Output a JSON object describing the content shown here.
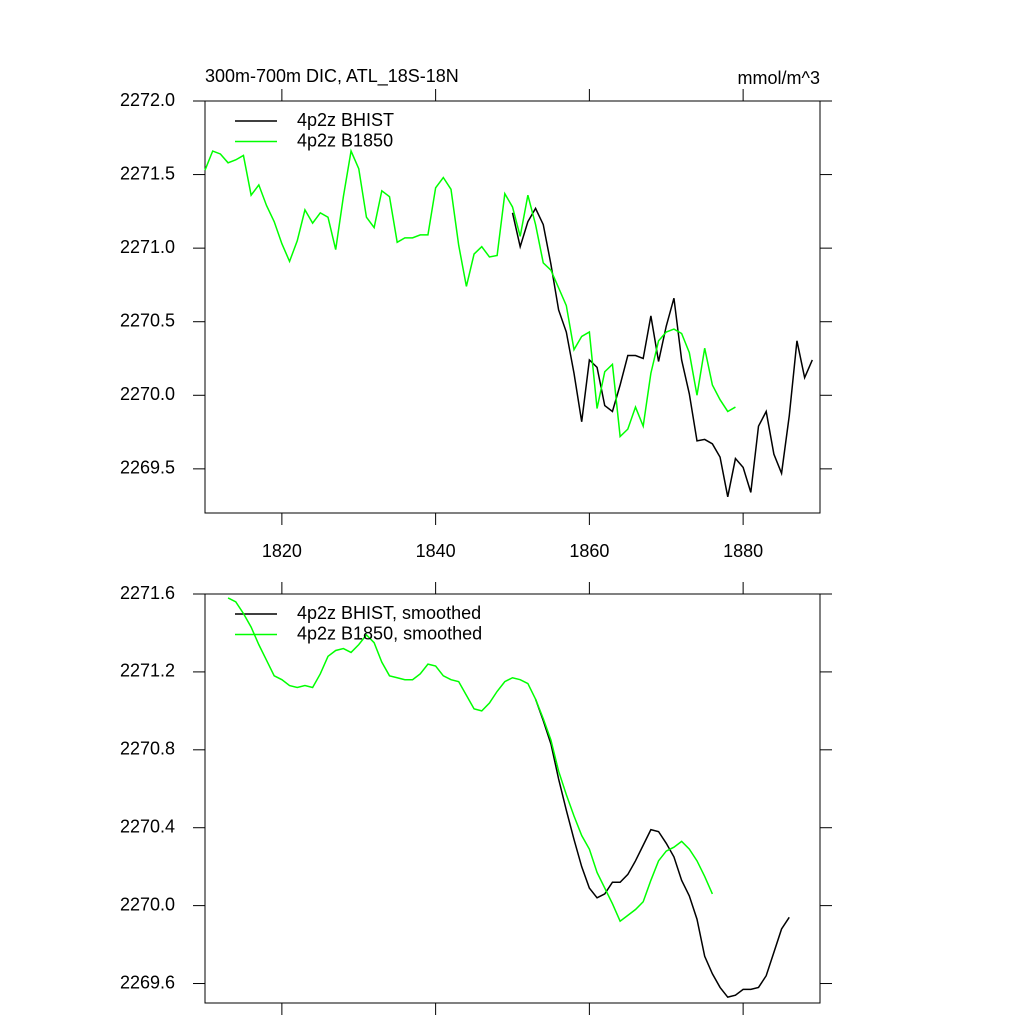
{
  "chart_data": [
    {
      "type": "line",
      "title": "300m-700m DIC, ATL_18S-18N",
      "units": "mmol/m^3",
      "x": [
        1810,
        1811,
        1812,
        1813,
        1814,
        1815,
        1816,
        1817,
        1818,
        1819,
        1820,
        1821,
        1822,
        1823,
        1824,
        1825,
        1826,
        1827,
        1828,
        1829,
        1830,
        1831,
        1832,
        1833,
        1834,
        1835,
        1836,
        1837,
        1838,
        1839,
        1840,
        1841,
        1842,
        1843,
        1844,
        1845,
        1846,
        1847,
        1848,
        1849,
        1850,
        1851,
        1852,
        1853,
        1854,
        1855,
        1856,
        1857,
        1858,
        1859,
        1860,
        1861,
        1862,
        1863,
        1864,
        1865,
        1866,
        1867,
        1868,
        1869,
        1870,
        1871,
        1872,
        1873,
        1874,
        1875,
        1876,
        1877,
        1878,
        1879,
        1880,
        1881,
        1882,
        1883,
        1884,
        1885,
        1886,
        1887,
        1888,
        1889
      ],
      "series": [
        {
          "name": "4p2z BHIST",
          "color": "#000000",
          "values": [
            null,
            null,
            null,
            null,
            null,
            null,
            null,
            null,
            null,
            null,
            null,
            null,
            null,
            null,
            null,
            null,
            null,
            null,
            null,
            null,
            null,
            null,
            null,
            null,
            null,
            null,
            null,
            null,
            null,
            null,
            null,
            null,
            null,
            null,
            null,
            null,
            null,
            null,
            null,
            null,
            2271.24,
            2271.01,
            2271.18,
            2271.27,
            2271.16,
            2270.89,
            2270.58,
            2270.43,
            2270.15,
            2269.82,
            2270.24,
            2270.19,
            2269.93,
            2269.89,
            2270.07,
            2270.27,
            2270.27,
            2270.25,
            2270.54,
            2270.23,
            2270.47,
            2270.66,
            2270.24,
            2270.01,
            2269.69,
            2269.7,
            2269.67,
            2269.58,
            2269.31,
            2269.57,
            2269.51,
            2269.34,
            2269.79,
            2269.89,
            2269.6,
            2269.47,
            2269.86,
            2270.37,
            2270.12,
            2270.24
          ]
        },
        {
          "name": "4p2z B1850",
          "color": "#00ff00",
          "values": [
            2271.53,
            2271.66,
            2271.64,
            2271.58,
            2271.6,
            2271.63,
            2271.36,
            2271.43,
            2271.29,
            2271.18,
            2271.03,
            2270.91,
            2271.05,
            2271.26,
            2271.17,
            2271.24,
            2271.21,
            2270.99,
            2271.35,
            2271.66,
            2271.54,
            2271.21,
            2271.14,
            2271.39,
            2271.35,
            2271.04,
            2271.07,
            2271.07,
            2271.09,
            2271.09,
            2271.41,
            2271.48,
            2271.4,
            2271.02,
            2270.74,
            2270.96,
            2271.01,
            2270.94,
            2270.95,
            2271.37,
            2271.28,
            2271.08,
            2271.36,
            2271.16,
            2270.9,
            2270.85,
            2270.73,
            2270.61,
            2270.31,
            2270.4,
            2270.43,
            2269.91,
            2270.16,
            2270.21,
            2269.72,
            2269.77,
            2269.92,
            2269.79,
            2270.15,
            2270.37,
            2270.43,
            2270.45,
            2270.42,
            2270.29,
            2270.0,
            2270.32,
            2270.07,
            2269.97,
            2269.89,
            2269.92,
            null,
            null,
            null,
            null,
            null,
            null,
            null,
            null,
            null,
            null
          ]
        }
      ],
      "xlim": [
        1810,
        1890
      ],
      "xticks": [
        1820,
        1840,
        1860,
        1880
      ],
      "ylim": [
        2269.2,
        2272.0
      ],
      "yticks": [
        2269.5,
        {
          "value": 2270,
          "label": "2270.0"
        },
        2270.5,
        {
          "value": 2271,
          "label": "2271.0"
        },
        2271.5,
        {
          "value": 2272,
          "label": "2272.0"
        }
      ],
      "legend": "upper left"
    },
    {
      "type": "line",
      "x": [
        1810,
        1811,
        1812,
        1813,
        1814,
        1815,
        1816,
        1817,
        1818,
        1819,
        1820,
        1821,
        1822,
        1823,
        1824,
        1825,
        1826,
        1827,
        1828,
        1829,
        1830,
        1831,
        1832,
        1833,
        1834,
        1835,
        1836,
        1837,
        1838,
        1839,
        1840,
        1841,
        1842,
        1843,
        1844,
        1845,
        1846,
        1847,
        1848,
        1849,
        1850,
        1851,
        1852,
        1853,
        1854,
        1855,
        1856,
        1857,
        1858,
        1859,
        1860,
        1861,
        1862,
        1863,
        1864,
        1865,
        1866,
        1867,
        1868,
        1869,
        1870,
        1871,
        1872,
        1873,
        1874,
        1875,
        1876,
        1877,
        1878,
        1879,
        1880,
        1881,
        1882,
        1883,
        1884,
        1885,
        1886,
        1887,
        1888,
        1889
      ],
      "series": [
        {
          "name": "4p2z BHIST, smoothed",
          "color": "#000000",
          "values": [
            null,
            null,
            null,
            null,
            null,
            null,
            null,
            null,
            null,
            null,
            null,
            null,
            null,
            null,
            null,
            null,
            null,
            null,
            null,
            null,
            null,
            null,
            null,
            null,
            null,
            null,
            null,
            null,
            null,
            null,
            null,
            null,
            null,
            null,
            null,
            null,
            null,
            null,
            null,
            null,
            null,
            null,
            null,
            2271.06,
            2270.95,
            2270.83,
            2270.65,
            2270.49,
            2270.34,
            2270.2,
            2270.09,
            2270.04,
            2270.06,
            2270.12,
            2270.12,
            2270.16,
            2270.23,
            2270.31,
            2270.39,
            2270.38,
            2270.32,
            2270.25,
            2270.13,
            2270.05,
            2269.93,
            2269.74,
            2269.65,
            2269.58,
            2269.53,
            2269.54,
            2269.57,
            2269.57,
            2269.58,
            2269.64,
            2269.76,
            2269.88,
            2269.94,
            null,
            null,
            null
          ]
        },
        {
          "name": "4p2z B1850, smoothed",
          "color": "#00ff00",
          "values": [
            null,
            null,
            null,
            2271.58,
            2271.56,
            2271.5,
            2271.43,
            2271.34,
            2271.26,
            2271.18,
            2271.16,
            2271.13,
            2271.12,
            2271.13,
            2271.12,
            2271.19,
            2271.28,
            2271.31,
            2271.32,
            2271.3,
            2271.34,
            2271.39,
            2271.35,
            2271.25,
            2271.18,
            2271.17,
            2271.16,
            2271.16,
            2271.19,
            2271.24,
            2271.23,
            2271.18,
            2271.16,
            2271.15,
            2271.08,
            2271.01,
            2271.0,
            2271.04,
            2271.1,
            2271.15,
            2271.17,
            2271.16,
            2271.14,
            2271.06,
            2270.96,
            2270.85,
            2270.69,
            2270.57,
            2270.46,
            2270.36,
            2270.29,
            2270.17,
            2270.09,
            2270.01,
            2269.92,
            2269.95,
            2269.98,
            2270.02,
            2270.13,
            2270.23,
            2270.28,
            2270.3,
            2270.33,
            2270.29,
            2270.23,
            2270.15,
            2270.06,
            null,
            null,
            null,
            null,
            null,
            null,
            null,
            null,
            null,
            null,
            null,
            null,
            null
          ]
        }
      ],
      "xlim": [
        1810,
        1890
      ],
      "xticks": [
        1820,
        1840,
        1860,
        1880
      ],
      "ylim": [
        2269.5,
        2271.6
      ],
      "yticks": [
        2269.6,
        {
          "value": 2270,
          "label": "2270.0"
        },
        2270.4,
        2270.8,
        2271.2,
        2271.6
      ],
      "legend": "upper left"
    }
  ]
}
